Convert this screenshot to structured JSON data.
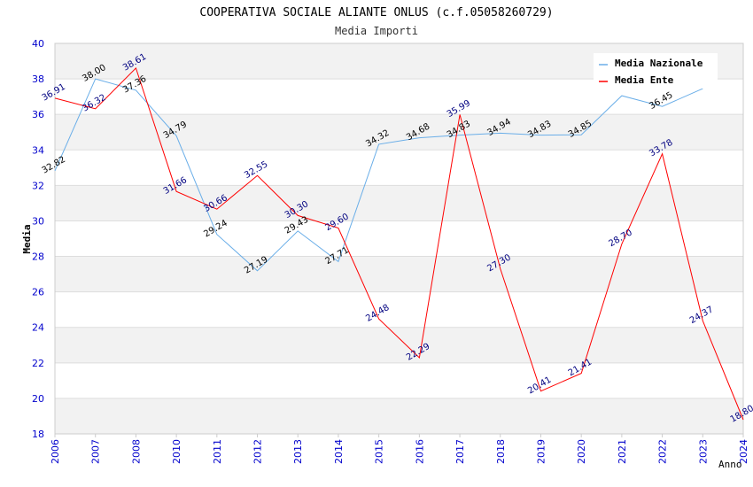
{
  "chart_data": {
    "type": "line",
    "title": "COOPERATIVA SOCIALE ALIANTE ONLUS (c.f.05058260729)",
    "subtitle": "Media Importi",
    "ylabel": "Media",
    "xlabel": "Anno",
    "ylim": [
      18,
      40
    ],
    "yticks": [
      "18",
      "20",
      "22",
      "24",
      "26",
      "28",
      "30",
      "32",
      "34",
      "36",
      "38",
      "40"
    ],
    "x": [
      "2006",
      "2007",
      "2008",
      "2010",
      "2011",
      "2012",
      "2013",
      "2014",
      "2015",
      "2016",
      "2017",
      "2018",
      "2019",
      "2020",
      "2021",
      "2022",
      "2023",
      "2024"
    ],
    "grid": true,
    "legend_position": "top-right",
    "series": [
      {
        "name": "Media Nazionale",
        "color": "#6aaee8",
        "values": [
          32.82,
          38.0,
          37.36,
          34.79,
          29.24,
          27.19,
          29.43,
          27.71,
          34.32,
          34.68,
          34.83,
          34.94,
          34.83,
          34.85,
          37.05,
          36.45,
          37.45,
          null
        ],
        "labels": [
          "32.82",
          "38.00",
          "37.36",
          "34.79",
          "29.24",
          "27.19",
          "29.43",
          "27.71",
          "34.32",
          "34.68",
          "34.83",
          "34.94",
          "34.83",
          "34.85",
          "",
          "36.45",
          "",
          ""
        ]
      },
      {
        "name": "Media Ente",
        "color": "#ff0000",
        "values": [
          36.91,
          36.32,
          38.61,
          31.66,
          30.66,
          32.55,
          30.3,
          29.6,
          24.48,
          22.29,
          35.99,
          27.3,
          20.41,
          21.41,
          28.7,
          33.78,
          24.37,
          18.8
        ],
        "labels": [
          "36.91",
          "36.32",
          "38.61",
          "31.66",
          "30.66",
          "32.55",
          "30.30",
          "29.60",
          "24.48",
          "22.29",
          "35.99",
          "27.30",
          "20.41",
          "21.41",
          "28.70",
          "33.78",
          "24.37",
          "18.80"
        ]
      }
    ]
  }
}
